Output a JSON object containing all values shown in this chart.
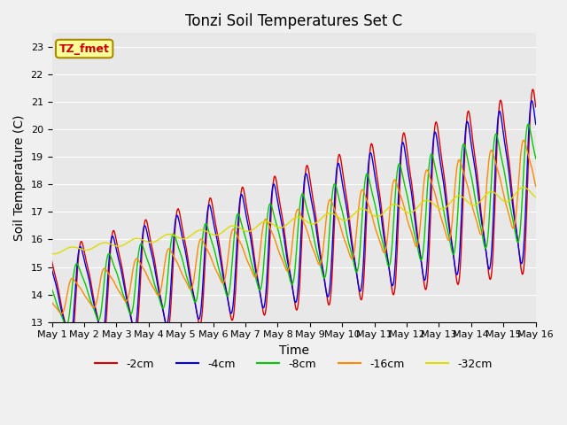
{
  "title": "Tonzi Soil Temperatures Set C",
  "xlabel": "Time",
  "ylabel": "Soil Temperature (C)",
  "ylim": [
    13.0,
    23.5
  ],
  "yticks": [
    13.0,
    14.0,
    15.0,
    16.0,
    17.0,
    18.0,
    19.0,
    20.0,
    21.0,
    22.0,
    23.0
  ],
  "colors": {
    "-2cm": "#dd0000",
    "-4cm": "#0000ee",
    "-8cm": "#00cc00",
    "-16cm": "#ff8800",
    "-32cm": "#dddd00"
  },
  "legend_labels": [
    "-2cm",
    "-4cm",
    "-8cm",
    "-16cm",
    "-32cm"
  ],
  "annotation_text": "TZ_fmet",
  "annotation_color": "#cc0000",
  "annotation_bg": "#ffff99",
  "bg_color": "#e8e8e8",
  "n_days": 15,
  "points_per_day": 48,
  "title_fontsize": 12,
  "axis_label_fontsize": 10,
  "tick_label_fontsize": 8
}
